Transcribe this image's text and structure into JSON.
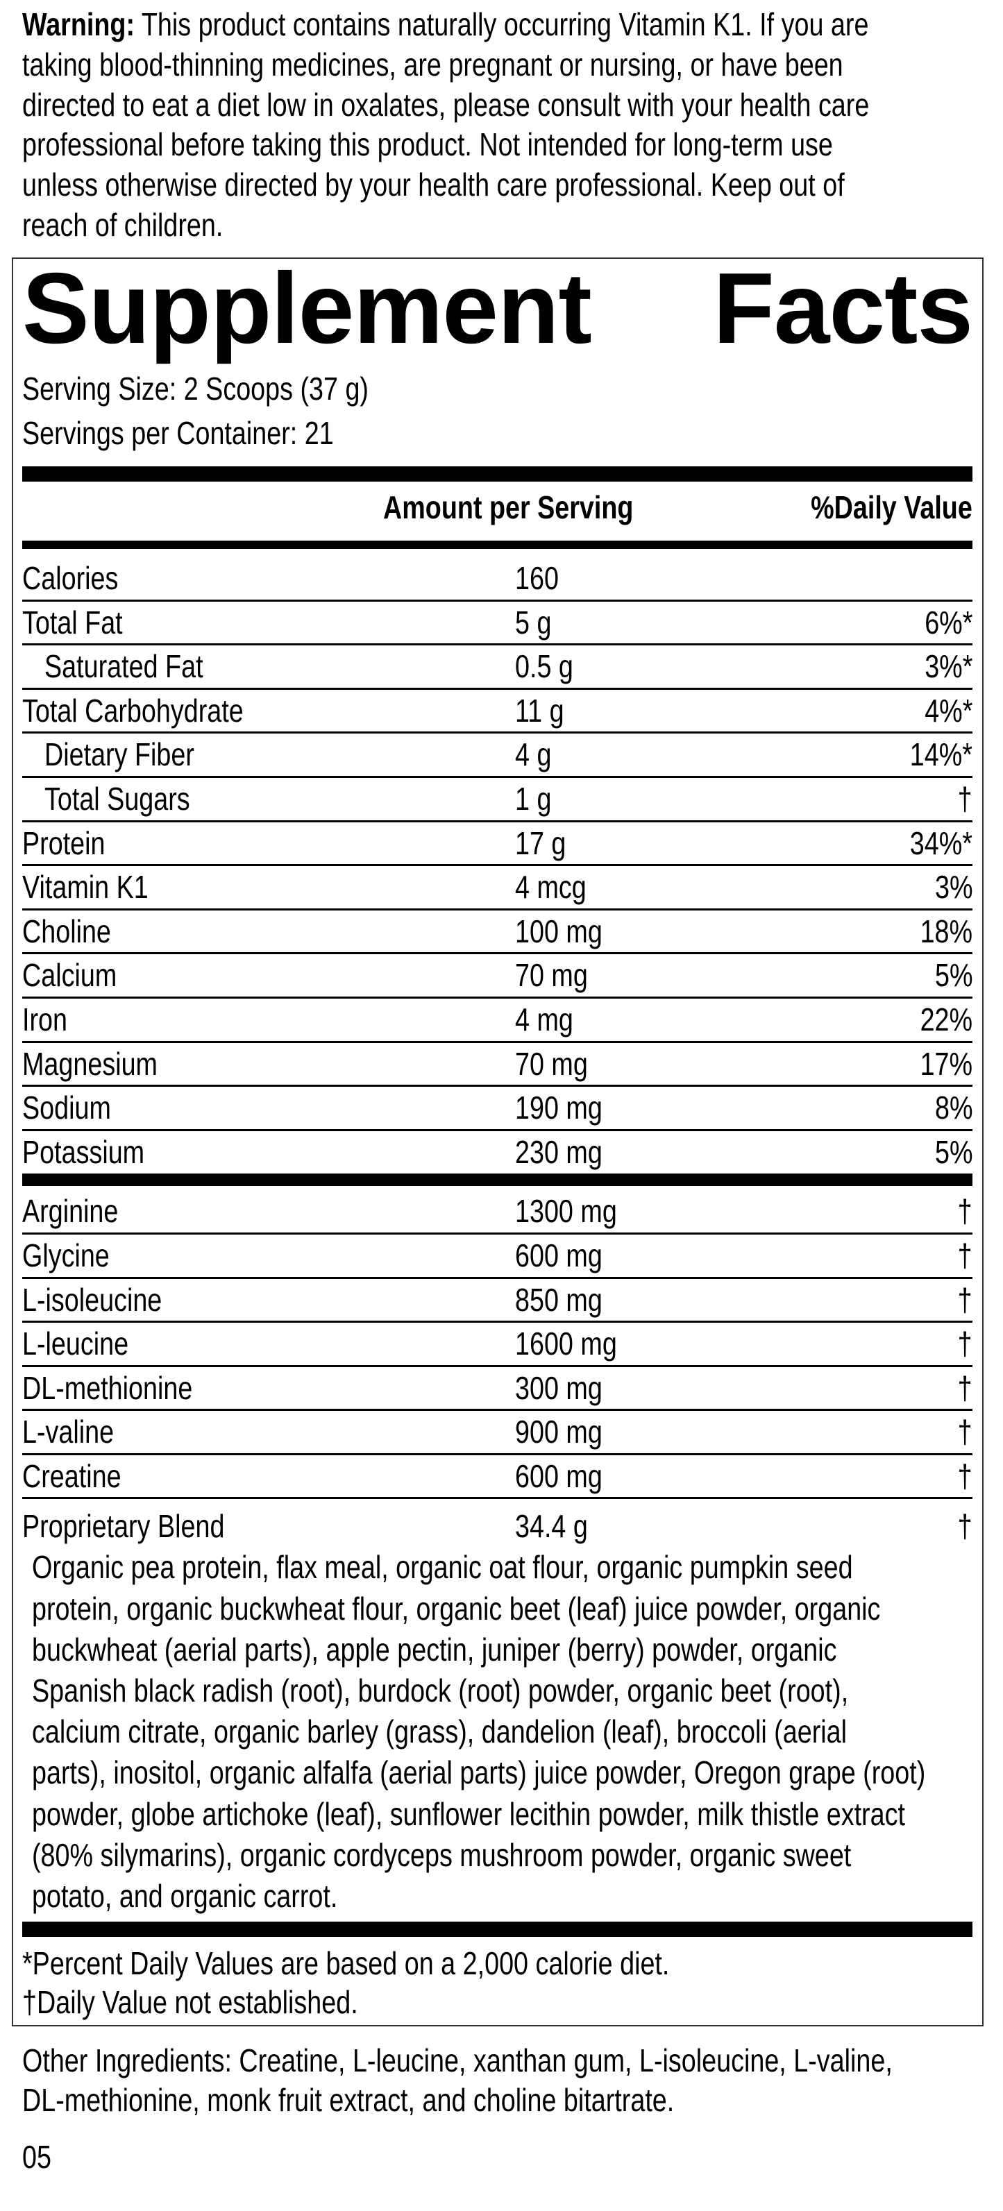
{
  "warning": {
    "label": "Warning:",
    "lines": [
      " This product contains naturally occurring Vitamin K1. If you are",
      "taking blood-thinning medicines, are pregnant or nursing, or have been",
      "directed to eat a diet low in oxalates, please consult with your health care",
      "professional before taking this product. Not intended for long-term use",
      "unless otherwise directed by your health care professional. Keep out of",
      "reach of children."
    ]
  },
  "facts": {
    "title_word1": "Supplement",
    "title_word2": "Facts",
    "serving_size": "Serving Size: 2 Scoops (37 g)",
    "servings_per_container": "Servings per Container: 21",
    "header_amount": "Amount per Serving",
    "header_dv": "%Daily Value",
    "nutrients": [
      {
        "name": "Calories",
        "amount": "160",
        "dv": ""
      },
      {
        "name": "Total Fat",
        "amount": "5 g",
        "dv": "6%*"
      },
      {
        "name": "Saturated Fat",
        "amount": "0.5 g",
        "dv": "3%*"
      },
      {
        "name": "Total Carbohydrate",
        "amount": "11 g",
        "dv": "4%*"
      },
      {
        "name": "Dietary Fiber",
        "amount": "4 g",
        "dv": "14%*"
      },
      {
        "name": "Total Sugars",
        "amount": "1 g",
        "dv": "†"
      },
      {
        "name": "Protein",
        "amount": "17 g",
        "dv": "34%*"
      },
      {
        "name": "Vitamin K1",
        "amount": "4 mcg",
        "dv": "3%"
      },
      {
        "name": "Choline",
        "amount": "100 mg",
        "dv": "18%"
      },
      {
        "name": "Calcium",
        "amount": "70 mg",
        "dv": "5%"
      },
      {
        "name": "Iron",
        "amount": "4 mg",
        "dv": "22%"
      },
      {
        "name": "Magnesium",
        "amount": "70 mg",
        "dv": "17%"
      },
      {
        "name": "Sodium",
        "amount": "190 mg",
        "dv": "8%"
      },
      {
        "name": "Potassium",
        "amount": "230 mg",
        "dv": "5%"
      }
    ],
    "amino_acids": [
      {
        "name": "Arginine",
        "amount": "1300 mg",
        "dv": "†"
      },
      {
        "name": "Glycine",
        "amount": "600 mg",
        "dv": "†"
      },
      {
        "name": "L-isoleucine",
        "amount": "850 mg",
        "dv": "†"
      },
      {
        "name": "L-leucine",
        "amount": "1600 mg",
        "dv": "†"
      },
      {
        "name": "DL-methionine",
        "amount": "300 mg",
        "dv": "†"
      },
      {
        "name": "L-valine",
        "amount": "900 mg",
        "dv": "†"
      },
      {
        "name": "Creatine",
        "amount": "600 mg",
        "dv": "†"
      }
    ],
    "blend": {
      "name": "Proprietary Blend",
      "amount": "34.4 g",
      "dv": "†",
      "lines": [
        "Organic pea protein, flax meal, organic oat flour, organic pumpkin seed",
        "protein, organic buckwheat flour, organic beet (leaf) juice powder, organic",
        "buckwheat (aerial parts), apple pectin, juniper (berry) powder, organic",
        "Spanish black radish (root), burdock (root) powder, organic beet (root),",
        "calcium citrate, organic barley (grass), dandelion (leaf), broccoli (aerial",
        "parts), inositol, organic alfalfa (aerial parts) juice powder, Oregon grape (root)",
        "powder, globe artichoke (leaf), sunflower lecithin powder, milk thistle extract",
        "(80% silymarins), organic cordyceps mushroom powder, organic sweet",
        "potato, and organic carrot."
      ]
    },
    "footnote_1": "*Percent Daily Values are based on a 2,000 calorie diet.",
    "footnote_2": "†Daily Value not established."
  },
  "other_ingredients": {
    "lines": [
      "Other Ingredients: Creatine, L-leucine, xanthan gum, L-isoleucine, L-valine,",
      "DL-methionine, monk fruit extract, and choline bitartrate."
    ]
  },
  "code": "05"
}
